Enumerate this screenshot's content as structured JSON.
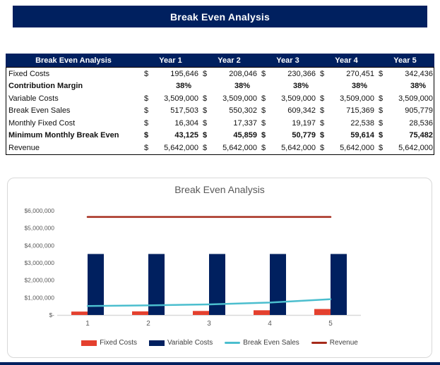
{
  "banner": {
    "title": "Break Even Analysis"
  },
  "table": {
    "currency_symbol": "$",
    "header": [
      "Break Even Analysis",
      "Year 1",
      "Year 2",
      "Year 3",
      "Year 4",
      "Year 5"
    ],
    "rows": [
      {
        "label": "Fixed Costs",
        "bold": false,
        "format": "currency",
        "values": [
          "195,646",
          "208,046",
          "230,366",
          "270,451",
          "342,436"
        ]
      },
      {
        "label": "Contribution Margin",
        "bold": true,
        "format": "percent",
        "values": [
          "38%",
          "38%",
          "38%",
          "38%",
          "38%"
        ]
      },
      {
        "label": "Variable Costs",
        "bold": false,
        "format": "currency",
        "values": [
          "3,509,000",
          "3,509,000",
          "3,509,000",
          "3,509,000",
          "3,509,000"
        ]
      },
      {
        "label": "Break Even Sales",
        "bold": false,
        "format": "currency",
        "values": [
          "517,503",
          "550,302",
          "609,342",
          "715,369",
          "905,779"
        ]
      },
      {
        "label": "Monthly Fixed Cost",
        "bold": false,
        "format": "currency",
        "values": [
          "16,304",
          "17,337",
          "19,197",
          "22,538",
          "28,536"
        ]
      },
      {
        "label": "Minimum Monthly Break Even",
        "bold": true,
        "format": "currency",
        "values": [
          "43,125",
          "45,859",
          "50,779",
          "59,614",
          "75,482"
        ]
      },
      {
        "label": "Revenue",
        "bold": false,
        "format": "currency",
        "values": [
          "5,642,000",
          "5,642,000",
          "5,642,000",
          "5,642,000",
          "5,642,000"
        ]
      }
    ]
  },
  "chart_data": {
    "type": "bar",
    "title": "Break Even Analysis",
    "xlabel": "",
    "ylabel": "",
    "categories": [
      "1",
      "2",
      "3",
      "4",
      "5"
    ],
    "series": [
      {
        "name": "Fixed Costs",
        "type": "bar",
        "color": "#E4402E",
        "values": [
          195646,
          208046,
          230366,
          270451,
          342436
        ]
      },
      {
        "name": "Variable Costs",
        "type": "bar",
        "color": "#00205F",
        "values": [
          3509000,
          3509000,
          3509000,
          3509000,
          3509000
        ]
      },
      {
        "name": "Break Even Sales",
        "type": "line",
        "color": "#4BBECE",
        "values": [
          517503,
          550302,
          609342,
          715369,
          905779
        ]
      },
      {
        "name": "Revenue",
        "type": "line",
        "color": "#A52A1A",
        "values": [
          5642000,
          5642000,
          5642000,
          5642000,
          5642000
        ]
      }
    ],
    "ylim": [
      0,
      6000000
    ],
    "ytick_step": 1000000,
    "ytick_labels": [
      "$-",
      "$1,000,000",
      "$2,000,000",
      "$3,000,000",
      "$4,000,000",
      "$5,000,000",
      "$6,000,000"
    ],
    "grid": false,
    "legend_position": "bottom"
  },
  "colors": {
    "banner_bg": "#00205F",
    "table_header_bg": "#00205F",
    "axis_text": "#595959",
    "axis_line": "#D9D9D9",
    "chart_border": "#D8D8D8"
  }
}
